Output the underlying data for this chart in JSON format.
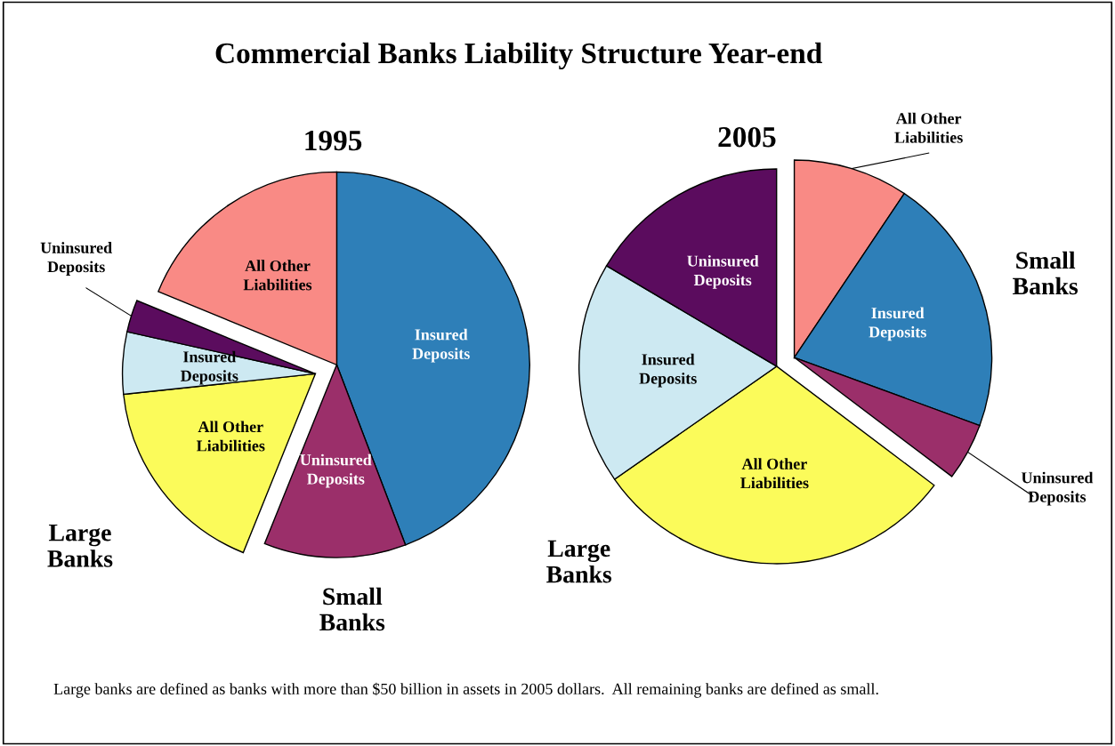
{
  "chart_data": [
    {
      "type": "pie",
      "title": "1995",
      "categories": [
        "Insured Deposits",
        "Uninsured Deposits",
        "All Other Liabilities",
        "Insured Deposits",
        "Uninsured Deposits",
        "All Other Liabilities"
      ],
      "values": [
        44.2,
        11.9,
        17.2,
        5.2,
        2.7,
        18.8
      ],
      "colors": [
        "#2e7fb8",
        "#9b2f6a",
        "#fbfb5a",
        "#cde9f2",
        "#5b0c5e",
        "#f98a85"
      ],
      "annotations": [
        "Commercial Banks Liability Structure Year-end",
        "Large Banks",
        "Small Banks",
        "Large banks are defined as banks with more than $50 billion in assets in 2005 dollars.  All remaining banks are defined as small."
      ]
    },
    {
      "type": "pie",
      "title": "2005",
      "categories": [
        "All Other Liabilities",
        "Insured Deposits",
        "Uninsured Deposits",
        "All Other Liabilities",
        "Insured Deposits",
        "Uninsured Deposits"
      ],
      "values": [
        9.4,
        21.2,
        4.7,
        30.0,
        18.2,
        16.5
      ],
      "colors": [
        "#f98a85",
        "#2e7fb8",
        "#9b2f6a",
        "#fbfb5a",
        "#cde9f2",
        "#5b0c5e"
      ],
      "annotations": [
        "Large Banks",
        "Small Banks"
      ]
    }
  ]
}
